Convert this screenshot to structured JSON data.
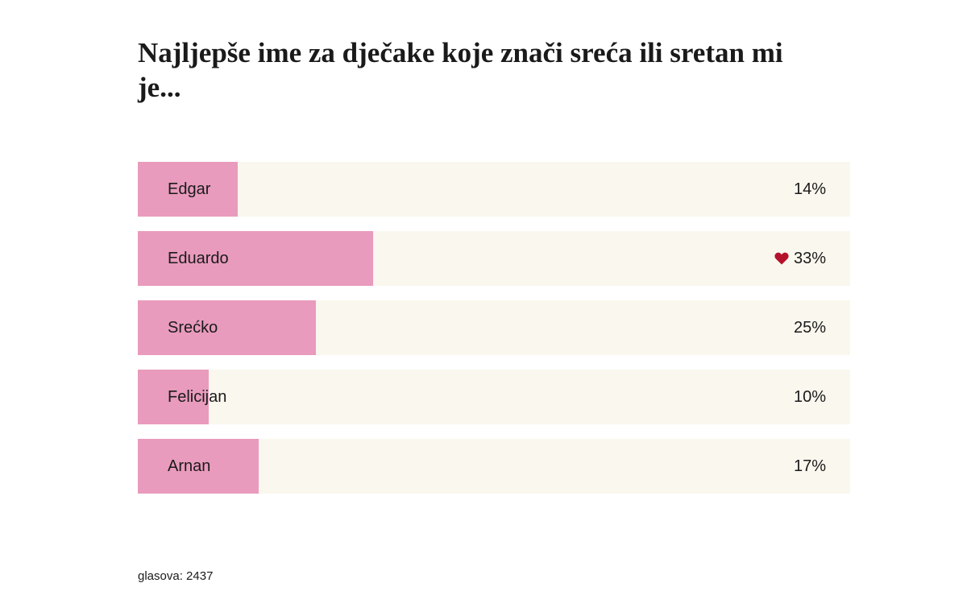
{
  "poll": {
    "title": "Najljepše ime za dječake koje znači sreća ili sretan mi je...",
    "xlim": [
      0,
      100
    ],
    "bar_color": "#e99bbd",
    "track_color": "#faf7ee",
    "selected": 1,
    "options": [
      {
        "name": "Edgar",
        "value": 14,
        "value_label": "14%"
      },
      {
        "name": "Eduardo",
        "value": 33,
        "value_label": "33%"
      },
      {
        "name": "Srećko",
        "value": 25,
        "value_label": "25%"
      },
      {
        "name": "Felicijan",
        "value": 10,
        "value_label": "10%"
      },
      {
        "name": "Arnan",
        "value": 17,
        "value_label": "17%"
      }
    ],
    "votes_label": "glasova: 2437"
  }
}
